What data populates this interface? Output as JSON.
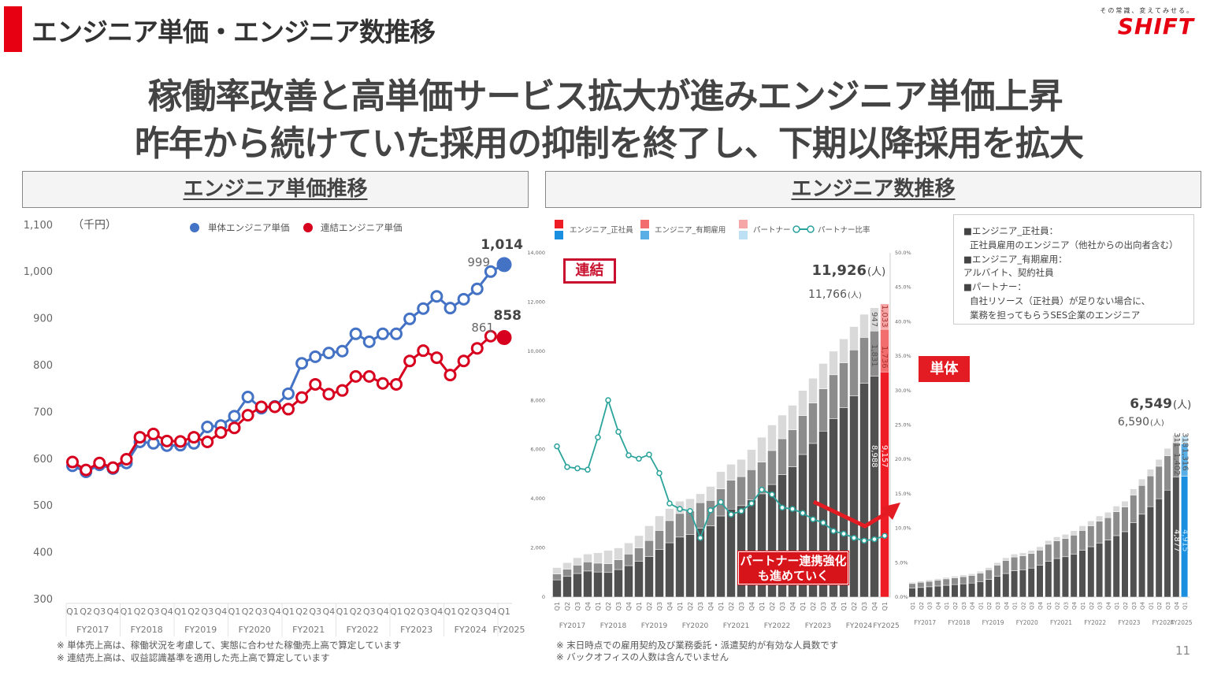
{
  "header": {
    "title": "エンジニア単価・エンジニア数推移",
    "logo_tagline": "その常識、変えてみせる。",
    "logo_name": "SHIFT",
    "brand_color": "#e60012"
  },
  "headline": {
    "line1": "稼働率改善と高単価サービス拡大が進みエンジニア単価上昇",
    "line2": "昨年から続けていた採用の抑制を終了し、下期以降採用を拡大"
  },
  "sections": {
    "left_title": "エンジニア単価推移",
    "right_title": "エンジニア数推移"
  },
  "chart_data": [
    {
      "type": "line",
      "unit": "（千円）",
      "ylim": [
        300,
        1100
      ],
      "yticks": [
        "300",
        "400",
        "500",
        "600",
        "700",
        "800",
        "900",
        "1,000",
        "1,100"
      ],
      "quarters": [
        "Q1",
        "Q2",
        "Q3",
        "Q4",
        "Q1",
        "Q2",
        "Q3",
        "Q4",
        "Q1",
        "Q2",
        "Q3",
        "Q4",
        "Q1",
        "Q2",
        "Q3",
        "Q4",
        "Q1",
        "Q2",
        "Q3",
        "Q4",
        "Q1",
        "Q2",
        "Q3",
        "Q4",
        "Q1",
        "Q2",
        "Q3",
        "Q4",
        "Q1",
        "Q2",
        "Q3",
        "Q4",
        "Q1"
      ],
      "fiscal_years": [
        "FY2017",
        "FY2018",
        "FY2019",
        "FY2020",
        "FY2021",
        "FY2022",
        "FY2023",
        "FY2024",
        "FY2025"
      ],
      "series": [
        {
          "name": "単体エンジニア単価",
          "color": "#4472c4",
          "values": [
            584,
            571,
            586,
            578,
            590,
            635,
            632,
            627,
            628,
            632,
            667,
            670,
            690,
            731,
            707,
            711,
            738,
            803,
            817,
            825,
            829,
            866,
            849,
            866,
            866,
            898,
            920,
            946,
            921,
            940,
            962,
            999,
            1014
          ]
        },
        {
          "name": "連結エンジニア単価",
          "color": "#d7001e",
          "values": [
            592,
            575,
            590,
            580,
            598,
            645,
            652,
            637,
            636,
            645,
            635,
            655,
            665,
            692,
            710,
            710,
            705,
            730,
            758,
            737,
            745,
            775,
            775,
            760,
            758,
            808,
            830,
            815,
            778,
            808,
            835,
            861,
            858
          ]
        }
      ],
      "labels": {
        "single_prev": "999",
        "single_last": "1,014",
        "consol_prev": "861",
        "consol_last": "858"
      },
      "grid": false,
      "legend_position": "top"
    },
    {
      "type": "bar",
      "stacked": true,
      "title_badge": "連結",
      "ylim": [
        0,
        14000
      ],
      "yticks": [
        "0",
        "2,000",
        "4,000",
        "6,000",
        "8,000",
        "10,000",
        "12,000",
        "14,000"
      ],
      "y2lim": [
        0,
        50
      ],
      "y2ticks": [
        "0.0%",
        "5.0%",
        "10.0%",
        "15.0%",
        "20.0%",
        "25.0%",
        "30.0%",
        "35.0%",
        "40.0%",
        "45.0%",
        "50.0%"
      ],
      "legend": [
        "エンジニア_正社員",
        "エンジニア_有期雇用",
        "パートナー",
        "パートナー比率"
      ],
      "series": [
        {
          "name": "エンジニア_正社員",
          "values": [
            700,
            840,
            960,
            1060,
            1020,
            1000,
            1120,
            1280,
            1450,
            1650,
            1930,
            2210,
            2440,
            2550,
            2800,
            2900,
            3300,
            3580,
            3720,
            3950,
            4200,
            4580,
            4980,
            5300,
            5800,
            6250,
            6750,
            7250,
            7700,
            8180,
            8700,
            8988,
            9157
          ]
        },
        {
          "name": "エンジニア_有期雇用",
          "values": [
            240,
            295,
            340,
            370,
            360,
            360,
            400,
            470,
            550,
            650,
            780,
            900,
            960,
            950,
            1040,
            1030,
            1100,
            1170,
            1180,
            1230,
            1290,
            1380,
            1460,
            1500,
            1580,
            1640,
            1720,
            1790,
            1830,
            1870,
            1860,
            1831,
            1736
          ]
        },
        {
          "name": "パートナー",
          "values": [
            260,
            265,
            300,
            320,
            420,
            540,
            480,
            450,
            500,
            600,
            590,
            490,
            500,
            500,
            360,
            570,
            700,
            650,
            700,
            820,
            1010,
            1040,
            960,
            1000,
            1020,
            1010,
            1030,
            960,
            970,
            950,
            940,
            947,
            1033
          ]
        },
        {
          "name": "パートナー比率",
          "unit": "%",
          "values": [
            21.9,
            18.9,
            18.7,
            18.5,
            23.2,
            28.6,
            24.0,
            20.6,
            20.1,
            20.7,
            18.0,
            13.6,
            12.8,
            12.5,
            8.6,
            12.6,
            13.8,
            12.0,
            12.5,
            13.6,
            15.6,
            14.9,
            13.0,
            12.8,
            12.2,
            11.3,
            10.8,
            9.6,
            9.2,
            8.6,
            8.2,
            8.4,
            8.9
          ]
        }
      ],
      "bar_labels": {
        "prev_employee": "8,988",
        "prev_fixed": "1,831",
        "prev_partner": "947",
        "last_employee": "9,157",
        "last_fixed": "1,736",
        "last_partner": "1,033"
      },
      "totals_text": {
        "last": "11,926",
        "last_unit": "(人)",
        "prev": "11,766",
        "prev_unit": "(人)"
      },
      "colors": {
        "employee": "#505050",
        "fixed": "#8c8c8c",
        "partner": "#d9d9d9",
        "last_employee": "#ee1c25",
        "last_fixed": "#f26d6d",
        "last_partner": "#f6a6a6",
        "ratio": "#2aa39b"
      }
    },
    {
      "type": "bar",
      "stacked": true,
      "title_badge": "単体",
      "series": [
        {
          "name": "エンジニア_正社員",
          "values": [
            360,
            390,
            420,
            450,
            480,
            510,
            540,
            570,
            630,
            720,
            840,
            960,
            1070,
            1110,
            1180,
            1290,
            1460,
            1570,
            1640,
            1750,
            1900,
            2050,
            2200,
            2320,
            2500,
            2660,
            3030,
            3370,
            3680,
            4000,
            4350,
            4877,
            4915
          ]
        },
        {
          "name": "エンジニア_有期雇用",
          "values": [
            190,
            210,
            220,
            240,
            260,
            270,
            290,
            310,
            340,
            390,
            460,
            530,
            560,
            570,
            590,
            620,
            690,
            720,
            740,
            770,
            810,
            850,
            890,
            910,
            970,
            1000,
            1120,
            1170,
            1250,
            1320,
            1400,
            1402,
            1316
          ]
        },
        {
          "name": "パートナー",
          "values": [
            50,
            50,
            60,
            60,
            60,
            70,
            70,
            70,
            80,
            90,
            100,
            110,
            120,
            120,
            130,
            140,
            150,
            160,
            170,
            180,
            190,
            200,
            210,
            220,
            230,
            240,
            250,
            260,
            270,
            280,
            300,
            311,
            318
          ]
        }
      ],
      "bar_labels": {
        "prev_employee": "4,877",
        "prev_fixed": "1,402",
        "prev_partner": "311",
        "last_employee": "4,915",
        "last_fixed": "1,316",
        "last_partner": "318"
      },
      "totals_text": {
        "last": "6,549",
        "last_unit": "(人)",
        "prev": "6,590",
        "prev_unit": "(人)"
      },
      "colors": {
        "last_employee": "#1a8fe0",
        "last_fixed": "#5aaee6",
        "last_partner": "#bde0f4"
      }
    }
  ],
  "definitions": [
    {
      "head": "■エンジニア_正社員：",
      "body": "正社員雇用のエンジニア（他社からの出向者含む）"
    },
    {
      "head": "■エンジニア_有期雇用：",
      "body": "アルバイト、契約社員"
    },
    {
      "head": "■パートナー：",
      "body": "自社リソース（正社員）が足りない場合に、",
      "body2": "業務を担ってもらうSES企業のエンジニア"
    }
  ],
  "callout": {
    "line1": "パートナー連携強化",
    "line2": "も進めていく"
  },
  "notes_left": [
    "※ 単体売上高は、稼働状況を考慮して、実態に合わせた稼働売上高で算定しています",
    "※ 連結売上高は、収益認識基準を適用した売上高で算定しています"
  ],
  "notes_right": [
    "※ 末日時点での雇用契約及び業務委託・派遣契約が有効な人員数です",
    "※ バックオフィスの人数は含んでいません"
  ],
  "page_number": "11"
}
